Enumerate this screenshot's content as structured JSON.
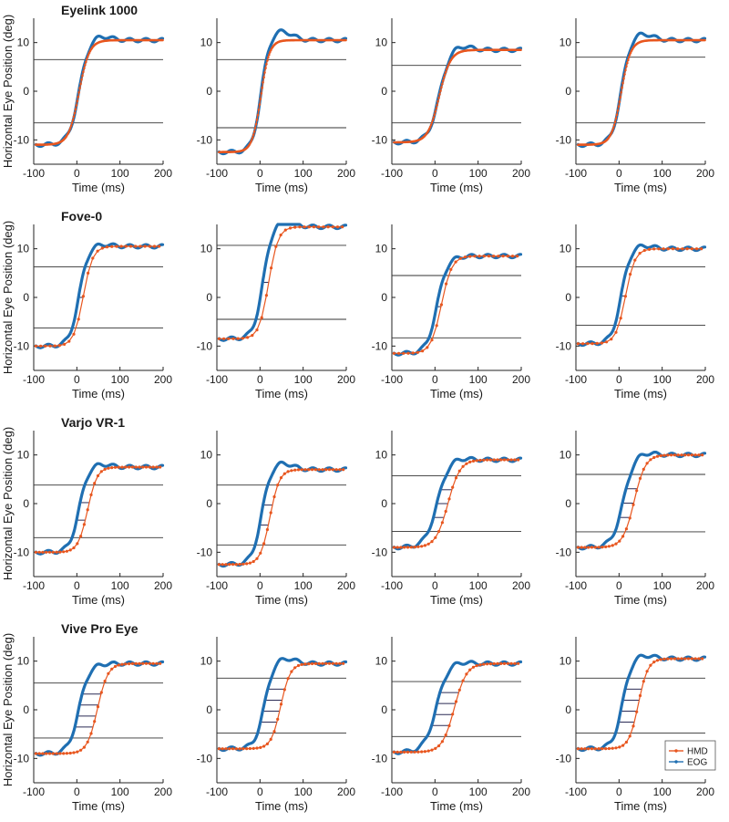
{
  "chart_data": {
    "type": "line",
    "xlim": [
      -100,
      200
    ],
    "ylim": [
      -15,
      15
    ],
    "xticks": [
      -100,
      0,
      100,
      200
    ],
    "yticks": [
      -10,
      0,
      10
    ],
    "xlabel": "Time (ms)",
    "ylabel": "Horizontal Eye Position (deg)",
    "legend": {
      "placement": "bottom-right",
      "entries": [
        "HMD",
        "EOG"
      ]
    },
    "colors": {
      "HMD": "#e8561f",
      "EOG": "#1f6fb2",
      "threshold": "#333333"
    },
    "rows": [
      {
        "title": "Eyelink 1000",
        "panels": [
          {
            "start": -11,
            "end": 10.5,
            "eog_mid": 5,
            "hmd_mid": 5,
            "width": 12,
            "overshoot": 1.0,
            "hmd_spacing": 2,
            "thresholds": [
              6.5,
              -6.5
            ]
          },
          {
            "start": -12.5,
            "end": 10.5,
            "eog_mid": 2,
            "hmd_mid": 2,
            "width": 10,
            "overshoot": 2.0,
            "hmd_spacing": 2,
            "thresholds": [
              6.5,
              -7.5
            ]
          },
          {
            "start": -10.5,
            "end": 8.5,
            "eog_mid": 10,
            "hmd_mid": 10,
            "width": 13,
            "overshoot": 1.0,
            "hmd_spacing": 2,
            "thresholds": [
              5.3,
              -6.5
            ]
          },
          {
            "start": -11,
            "end": 10.5,
            "eog_mid": 5,
            "hmd_mid": 5,
            "width": 11,
            "overshoot": 1.5,
            "hmd_spacing": 2,
            "thresholds": [
              7.0,
              -6.5
            ]
          }
        ]
      },
      {
        "title": "Fove-0",
        "panels": [
          {
            "start": -10,
            "end": 10.5,
            "eog_mid": 5,
            "hmd_mid": 15,
            "width": 11,
            "overshoot": 0.5,
            "hmd_spacing": 11,
            "thresholds": [
              6.3,
              -6.3
            ]
          },
          {
            "start": -8.5,
            "end": 14.5,
            "eog_mid": 7,
            "hmd_mid": 20,
            "width": 11,
            "overshoot": 1.5,
            "hmd_spacing": 11,
            "thresholds": [
              10.7,
              -4.5
            ]
          },
          {
            "start": -11.5,
            "end": 8.5,
            "eog_mid": 5,
            "hmd_mid": 15,
            "width": 12,
            "overshoot": 0,
            "hmd_spacing": 11,
            "thresholds": [
              4.5,
              -8.3
            ]
          },
          {
            "start": -9.5,
            "end": 10,
            "eog_mid": 5,
            "hmd_mid": 15,
            "width": 11,
            "overshoot": 0.8,
            "hmd_spacing": 11,
            "thresholds": [
              6.3,
              -5.7
            ]
          }
        ]
      },
      {
        "title": "Varjo VR-1",
        "panels": [
          {
            "start": -10,
            "end": 7.5,
            "eog_mid": 5,
            "hmd_mid": 25,
            "width": 11,
            "overshoot": 0.7,
            "hmd_spacing": 8,
            "thresholds": [
              3.8,
              -7.0
            ]
          },
          {
            "start": -12.5,
            "end": 7.0,
            "eog_mid": 3,
            "hmd_mid": 23,
            "width": 11,
            "overshoot": 1.5,
            "hmd_spacing": 8,
            "thresholds": [
              3.8,
              -8.5
            ]
          },
          {
            "start": -9,
            "end": 9,
            "eog_mid": 5,
            "hmd_mid": 30,
            "width": 14,
            "overshoot": 0.5,
            "hmd_spacing": 8,
            "thresholds": [
              5.7,
              -5.7
            ]
          },
          {
            "start": -9,
            "end": 10,
            "eog_mid": 10,
            "hmd_mid": 35,
            "width": 13,
            "overshoot": 0.6,
            "hmd_spacing": 8,
            "thresholds": [
              6.0,
              -5.8
            ]
          }
        ]
      },
      {
        "title": "Vive Pro Eye",
        "panels": [
          {
            "start": -9,
            "end": 9.5,
            "eog_mid": 5,
            "hmd_mid": 48,
            "width": 12,
            "overshoot": 0,
            "hmd_spacing": 8,
            "thresholds": [
              5.5,
              -5.8
            ]
          },
          {
            "start": -8,
            "end": 9.5,
            "eog_mid": 10,
            "hmd_mid": 48,
            "width": 11,
            "overshoot": 1.2,
            "hmd_spacing": 8,
            "thresholds": [
              6.5,
              -4.8
            ]
          },
          {
            "start": -8.7,
            "end": 9.5,
            "eog_mid": 3,
            "hmd_mid": 45,
            "width": 14,
            "overshoot": 0.5,
            "hmd_spacing": 8,
            "thresholds": [
              5.8,
              -5.5
            ]
          },
          {
            "start": -8,
            "end": 10.5,
            "eog_mid": 8,
            "hmd_mid": 45,
            "width": 11,
            "overshoot": 0.8,
            "hmd_spacing": 8,
            "thresholds": [
              6.5,
              -4.8
            ]
          }
        ]
      }
    ]
  }
}
